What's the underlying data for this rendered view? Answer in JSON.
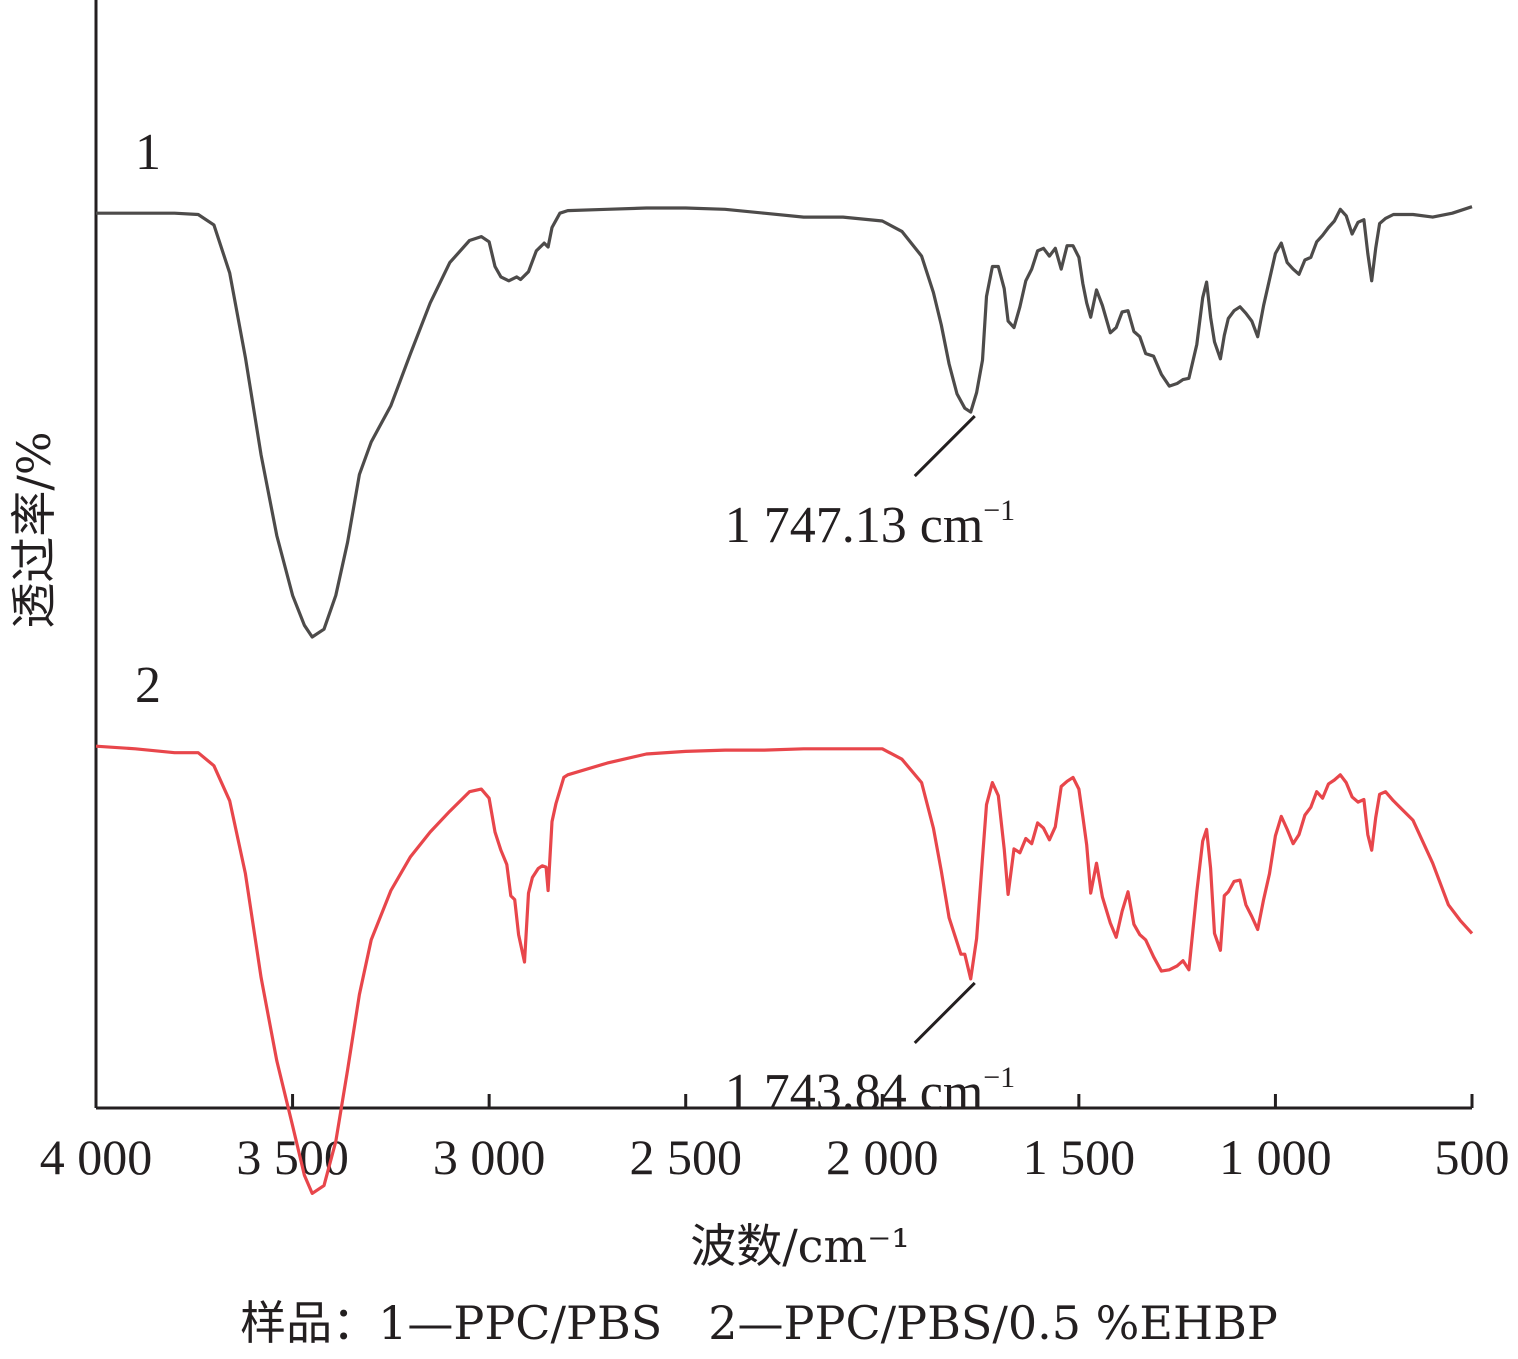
{
  "chart_data": {
    "type": "line",
    "xlabel": "波数/cm⁻¹",
    "ylabel": "透过率/%",
    "xlim": [
      4000,
      500
    ],
    "x_ticks": [
      4000,
      3500,
      3000,
      2500,
      2000,
      1500,
      1000,
      500
    ],
    "x_tick_labels": [
      "4 000",
      "3 500",
      "3 000",
      "2 500",
      "2 000",
      "1 500",
      "1 000",
      "500"
    ],
    "grid": false,
    "y_ticks": false,
    "ylim": [
      0,
      100
    ],
    "series": [
      {
        "name": "1",
        "color": "#4d4b4a",
        "points": [
          [
            4000,
            83.6
          ],
          [
            3900,
            83.6
          ],
          [
            3800,
            83.6
          ],
          [
            3740,
            83.5
          ],
          [
            3700,
            82.7
          ],
          [
            3660,
            79.0
          ],
          [
            3620,
            72.5
          ],
          [
            3580,
            65.0
          ],
          [
            3540,
            58.8
          ],
          [
            3500,
            54.2
          ],
          [
            3470,
            51.9
          ],
          [
            3450,
            51.0
          ],
          [
            3420,
            51.6
          ],
          [
            3390,
            54.2
          ],
          [
            3360,
            58.3
          ],
          [
            3330,
            63.5
          ],
          [
            3300,
            66.0
          ],
          [
            3250,
            68.8
          ],
          [
            3200,
            72.8
          ],
          [
            3150,
            76.7
          ],
          [
            3100,
            79.8
          ],
          [
            3050,
            81.5
          ],
          [
            3020,
            81.8
          ],
          [
            3000,
            81.4
          ],
          [
            2985,
            79.5
          ],
          [
            2970,
            78.7
          ],
          [
            2950,
            78.4
          ],
          [
            2930,
            78.7
          ],
          [
            2920,
            78.5
          ],
          [
            2900,
            79.1
          ],
          [
            2880,
            80.7
          ],
          [
            2860,
            81.3
          ],
          [
            2850,
            81.0
          ],
          [
            2840,
            82.5
          ],
          [
            2820,
            83.6
          ],
          [
            2800,
            83.8
          ],
          [
            2700,
            83.9
          ],
          [
            2600,
            84.0
          ],
          [
            2500,
            84.0
          ],
          [
            2400,
            83.9
          ],
          [
            2300,
            83.6
          ],
          [
            2200,
            83.3
          ],
          [
            2100,
            83.3
          ],
          [
            2000,
            83.0
          ],
          [
            1950,
            82.2
          ],
          [
            1900,
            80.3
          ],
          [
            1870,
            77.5
          ],
          [
            1850,
            75.0
          ],
          [
            1830,
            72.0
          ],
          [
            1810,
            69.7
          ],
          [
            1790,
            68.6
          ],
          [
            1775,
            68.3
          ],
          [
            1760,
            69.8
          ],
          [
            1745,
            72.3
          ],
          [
            1735,
            77.2
          ],
          [
            1720,
            79.5
          ],
          [
            1705,
            79.5
          ],
          [
            1690,
            77.8
          ],
          [
            1680,
            75.3
          ],
          [
            1665,
            74.8
          ],
          [
            1650,
            76.4
          ],
          [
            1635,
            78.4
          ],
          [
            1620,
            79.3
          ],
          [
            1605,
            80.7
          ],
          [
            1590,
            80.9
          ],
          [
            1575,
            80.3
          ],
          [
            1560,
            80.9
          ],
          [
            1545,
            79.3
          ],
          [
            1530,
            81.1
          ],
          [
            1515,
            81.1
          ],
          [
            1500,
            80.2
          ],
          [
            1490,
            78.2
          ],
          [
            1480,
            76.7
          ],
          [
            1470,
            75.6
          ],
          [
            1455,
            77.7
          ],
          [
            1440,
            76.5
          ],
          [
            1420,
            74.4
          ],
          [
            1405,
            74.8
          ],
          [
            1390,
            76.0
          ],
          [
            1375,
            76.1
          ],
          [
            1360,
            74.5
          ],
          [
            1345,
            74.1
          ],
          [
            1330,
            72.8
          ],
          [
            1310,
            72.6
          ],
          [
            1290,
            71.2
          ],
          [
            1270,
            70.3
          ],
          [
            1250,
            70.5
          ],
          [
            1235,
            70.8
          ],
          [
            1220,
            70.9
          ],
          [
            1200,
            73.5
          ],
          [
            1185,
            77.1
          ],
          [
            1175,
            78.3
          ],
          [
            1165,
            75.6
          ],
          [
            1155,
            73.7
          ],
          [
            1140,
            72.4
          ],
          [
            1130,
            74.2
          ],
          [
            1120,
            75.5
          ],
          [
            1105,
            76.1
          ],
          [
            1090,
            76.4
          ],
          [
            1075,
            75.9
          ],
          [
            1060,
            75.3
          ],
          [
            1045,
            74.1
          ],
          [
            1030,
            76.5
          ],
          [
            1015,
            78.5
          ],
          [
            1000,
            80.5
          ],
          [
            985,
            81.3
          ],
          [
            970,
            79.8
          ],
          [
            955,
            79.3
          ],
          [
            940,
            78.9
          ],
          [
            925,
            80.0
          ],
          [
            910,
            80.2
          ],
          [
            895,
            81.4
          ],
          [
            880,
            81.9
          ],
          [
            865,
            82.5
          ],
          [
            850,
            83.0
          ],
          [
            835,
            83.9
          ],
          [
            820,
            83.4
          ],
          [
            805,
            82.0
          ],
          [
            790,
            82.9
          ],
          [
            775,
            83.1
          ],
          [
            765,
            80.5
          ],
          [
            755,
            78.4
          ],
          [
            745,
            80.9
          ],
          [
            735,
            82.8
          ],
          [
            720,
            83.2
          ],
          [
            700,
            83.5
          ],
          [
            650,
            83.5
          ],
          [
            600,
            83.3
          ],
          [
            550,
            83.6
          ],
          [
            500,
            84.1
          ]
        ]
      },
      {
        "name": "2",
        "color": "#e8464b",
        "points": [
          [
            4000,
            42.6
          ],
          [
            3900,
            42.4
          ],
          [
            3800,
            42.1
          ],
          [
            3740,
            42.1
          ],
          [
            3700,
            41.1
          ],
          [
            3660,
            38.4
          ],
          [
            3620,
            32.8
          ],
          [
            3580,
            24.8
          ],
          [
            3540,
            18.4
          ],
          [
            3500,
            13.4
          ],
          [
            3470,
            9.6
          ],
          [
            3450,
            8.2
          ],
          [
            3420,
            8.8
          ],
          [
            3390,
            12.2
          ],
          [
            3360,
            17.7
          ],
          [
            3330,
            23.5
          ],
          [
            3300,
            27.7
          ],
          [
            3250,
            31.5
          ],
          [
            3200,
            34.1
          ],
          [
            3150,
            36.0
          ],
          [
            3100,
            37.6
          ],
          [
            3050,
            39.1
          ],
          [
            3020,
            39.3
          ],
          [
            3000,
            38.6
          ],
          [
            2985,
            36.0
          ],
          [
            2970,
            34.6
          ],
          [
            2955,
            33.5
          ],
          [
            2945,
            31.1
          ],
          [
            2935,
            30.8
          ],
          [
            2925,
            28.1
          ],
          [
            2910,
            26.0
          ],
          [
            2900,
            31.3
          ],
          [
            2890,
            32.5
          ],
          [
            2875,
            33.2
          ],
          [
            2865,
            33.4
          ],
          [
            2855,
            33.3
          ],
          [
            2850,
            31.5
          ],
          [
            2840,
            36.8
          ],
          [
            2830,
            38.2
          ],
          [
            2810,
            40.2
          ],
          [
            2800,
            40.4
          ],
          [
            2700,
            41.3
          ],
          [
            2600,
            42.0
          ],
          [
            2500,
            42.2
          ],
          [
            2400,
            42.3
          ],
          [
            2300,
            42.3
          ],
          [
            2200,
            42.4
          ],
          [
            2100,
            42.4
          ],
          [
            2000,
            42.4
          ],
          [
            1950,
            41.6
          ],
          [
            1900,
            39.8
          ],
          [
            1870,
            36.3
          ],
          [
            1850,
            33.0
          ],
          [
            1830,
            29.4
          ],
          [
            1815,
            28.0
          ],
          [
            1800,
            26.6
          ],
          [
            1790,
            26.6
          ],
          [
            1775,
            24.7
          ],
          [
            1760,
            27.8
          ],
          [
            1745,
            34.0
          ],
          [
            1735,
            38.1
          ],
          [
            1720,
            39.8
          ],
          [
            1705,
            38.8
          ],
          [
            1690,
            34.7
          ],
          [
            1680,
            31.2
          ],
          [
            1665,
            34.7
          ],
          [
            1650,
            34.4
          ],
          [
            1635,
            35.5
          ],
          [
            1620,
            35.1
          ],
          [
            1605,
            36.7
          ],
          [
            1590,
            36.3
          ],
          [
            1575,
            35.4
          ],
          [
            1560,
            36.4
          ],
          [
            1545,
            39.5
          ],
          [
            1530,
            39.9
          ],
          [
            1515,
            40.2
          ],
          [
            1500,
            39.3
          ],
          [
            1490,
            37.2
          ],
          [
            1480,
            35.0
          ],
          [
            1470,
            31.3
          ],
          [
            1455,
            33.6
          ],
          [
            1440,
            31.0
          ],
          [
            1420,
            29.0
          ],
          [
            1405,
            27.9
          ],
          [
            1390,
            29.9
          ],
          [
            1375,
            31.4
          ],
          [
            1360,
            28.9
          ],
          [
            1345,
            28.1
          ],
          [
            1330,
            27.7
          ],
          [
            1310,
            26.4
          ],
          [
            1290,
            25.3
          ],
          [
            1270,
            25.4
          ],
          [
            1250,
            25.7
          ],
          [
            1235,
            26.1
          ],
          [
            1220,
            25.4
          ],
          [
            1200,
            31.4
          ],
          [
            1185,
            35.3
          ],
          [
            1175,
            36.2
          ],
          [
            1165,
            33.2
          ],
          [
            1155,
            28.2
          ],
          [
            1140,
            26.9
          ],
          [
            1130,
            31.1
          ],
          [
            1120,
            31.4
          ],
          [
            1105,
            32.2
          ],
          [
            1090,
            32.3
          ],
          [
            1075,
            30.4
          ],
          [
            1060,
            29.5
          ],
          [
            1045,
            28.5
          ],
          [
            1030,
            30.8
          ],
          [
            1015,
            32.8
          ],
          [
            1000,
            35.7
          ],
          [
            985,
            37.2
          ],
          [
            970,
            36.2
          ],
          [
            955,
            35.1
          ],
          [
            940,
            35.8
          ],
          [
            925,
            37.3
          ],
          [
            910,
            37.9
          ],
          [
            895,
            39.1
          ],
          [
            880,
            38.6
          ],
          [
            865,
            39.7
          ],
          [
            850,
            40.0
          ],
          [
            835,
            40.4
          ],
          [
            820,
            39.8
          ],
          [
            805,
            38.7
          ],
          [
            790,
            38.3
          ],
          [
            775,
            38.5
          ],
          [
            765,
            35.8
          ],
          [
            755,
            34.6
          ],
          [
            745,
            37.1
          ],
          [
            735,
            38.9
          ],
          [
            720,
            39.1
          ],
          [
            700,
            38.4
          ],
          [
            650,
            36.9
          ],
          [
            600,
            33.6
          ],
          [
            560,
            30.4
          ],
          [
            530,
            29.2
          ],
          [
            500,
            28.2
          ]
        ]
      }
    ],
    "series_labels": [
      "1",
      "2"
    ],
    "annotations": [
      {
        "series": "1",
        "x": 1775,
        "label_main": "1 747.13 cm",
        "label_sup": "−1"
      },
      {
        "series": "2",
        "x": 1775,
        "label_main": "1 743.84 cm",
        "label_sup": "−1"
      }
    ],
    "caption": "样品：1—PPC/PBS　2—PPC/PBS/0.5 %EHBP"
  }
}
